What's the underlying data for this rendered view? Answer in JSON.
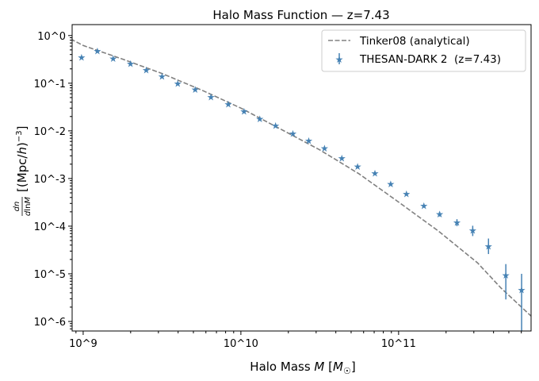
{
  "chart_data": {
    "type": "scatter",
    "title": "Halo Mass Function — z=7.43",
    "xlabel": "Halo Mass M [M☉]",
    "ylabel": "dn/dlnM [(Mpc/h)^-3]",
    "xscale": "log",
    "yscale": "log",
    "xlim_log10": [
      8.93,
      11.84
    ],
    "ylim_log10": [
      -6.2,
      0.23
    ],
    "x_ticks": [
      {
        "log": 9,
        "label": "10^9"
      },
      {
        "log": 10,
        "label": "10^10"
      },
      {
        "log": 11,
        "label": "10^11"
      }
    ],
    "y_ticks": [
      {
        "log": 0,
        "label": "10^0"
      },
      {
        "log": -1,
        "label": "10^-1"
      },
      {
        "log": -2,
        "label": "10^-2"
      },
      {
        "log": -3,
        "label": "10^-3"
      },
      {
        "log": -4,
        "label": "10^-4"
      },
      {
        "log": -5,
        "label": "10^-5"
      },
      {
        "log": -6,
        "label": "10^-6"
      }
    ],
    "legend_position": "top-right",
    "series": [
      {
        "name": "Tinker08 (analytical)",
        "style": "dashed-line",
        "color": "#808080",
        "log10_mass": [
          8.92,
          9.0,
          9.25,
          9.5,
          9.75,
          10.0,
          10.25,
          10.5,
          10.75,
          11.0,
          11.25,
          11.5,
          11.65,
          11.84
        ],
        "values": [
          0.85,
          0.62,
          0.32,
          0.16,
          0.072,
          0.03,
          0.011,
          0.004,
          0.00125,
          0.00032,
          8e-05,
          1.7e-05,
          5e-06,
          1.3e-06
        ]
      },
      {
        "name": "THESAN-DARK 2  (z=7.43)",
        "style": "star-errorbar",
        "color": "#4682b4",
        "log10_mass": [
          8.99,
          9.09,
          9.19,
          9.3,
          9.4,
          9.5,
          9.6,
          9.71,
          9.81,
          9.92,
          10.02,
          10.12,
          10.22,
          10.33,
          10.43,
          10.53,
          10.64,
          10.74,
          10.85,
          10.95,
          11.05,
          11.16,
          11.26,
          11.37,
          11.47,
          11.57,
          11.68,
          11.78
        ],
        "values": [
          0.35,
          0.48,
          0.33,
          0.26,
          0.19,
          0.14,
          0.1,
          0.075,
          0.052,
          0.037,
          0.026,
          0.018,
          0.013,
          0.0088,
          0.0063,
          0.0044,
          0.0027,
          0.0018,
          0.0013,
          0.00078,
          0.00048,
          0.00027,
          0.00018,
          0.00012,
          8.2e-05,
          3.8e-05,
          9.5e-06,
          4.6e-06
        ],
        "err_low": [
          0,
          0,
          0,
          0,
          0,
          0,
          0,
          0,
          0,
          0,
          0,
          0,
          0.001,
          0,
          0,
          0,
          0,
          0,
          0.0001,
          0,
          0,
          2e-05,
          2e-05,
          2e-05,
          2e-05,
          1.2e-05,
          6.6e-06,
          4.5e-06
        ],
        "err_high": [
          0,
          0,
          0,
          0,
          0,
          0,
          0,
          0,
          0,
          0,
          0,
          0,
          0.001,
          0,
          0,
          0,
          0,
          0,
          0.0001,
          0,
          0,
          2e-05,
          2e-05,
          2e-05,
          2e-05,
          1.7e-05,
          6.5e-06,
          5.4e-06
        ]
      }
    ]
  }
}
